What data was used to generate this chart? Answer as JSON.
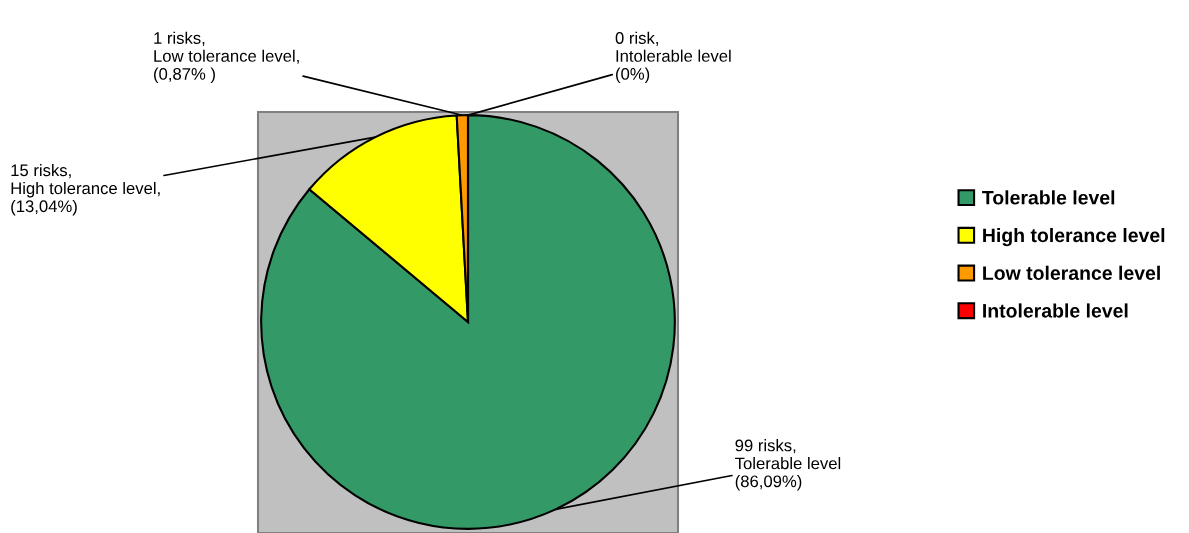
{
  "chart_data": {
    "type": "pie",
    "categories": [
      "Tolerable level",
      "High tolerance level",
      "Low tolerance level",
      "Intolerable level"
    ],
    "values": [
      99,
      15,
      1,
      0
    ],
    "colors": [
      "#339966",
      "#ffff00",
      "#ff9900",
      "#ff0000"
    ],
    "value_labels": [
      "99 risks,\nTolerable level\n(86,09%)",
      "15 risks,\nHigh tolerance level,\n(13,04%)",
      "1 risks,\nLow tolerance level,\n(0,87% )",
      "0 risk,\nIntolerable level\n(0%)"
    ],
    "legend": "right"
  }
}
